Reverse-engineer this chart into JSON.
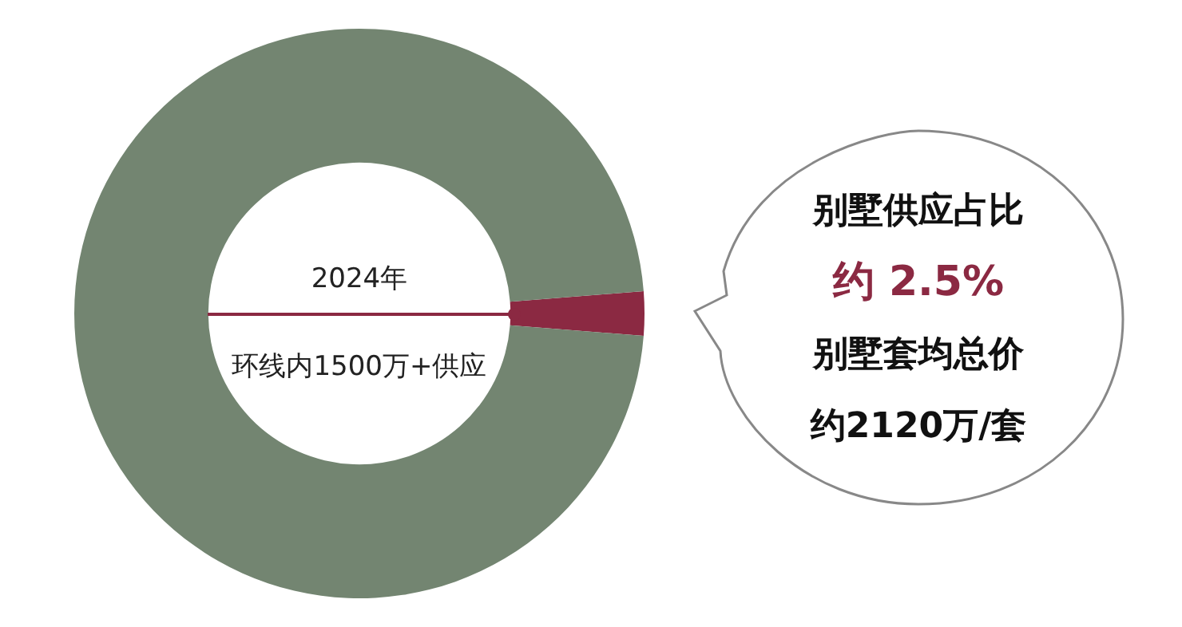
{
  "chart_data": {
    "type": "donut",
    "categories": [
      null,
      null
    ],
    "values": [
      2.5,
      97.5
    ],
    "colors": [
      "#8b2942",
      "#738571"
    ],
    "annotations": [
      "2024年",
      "环线内1500万+供应",
      "别墅供应占比",
      "约 2.5%",
      "别墅套均总价",
      "约2120万/套"
    ]
  }
}
